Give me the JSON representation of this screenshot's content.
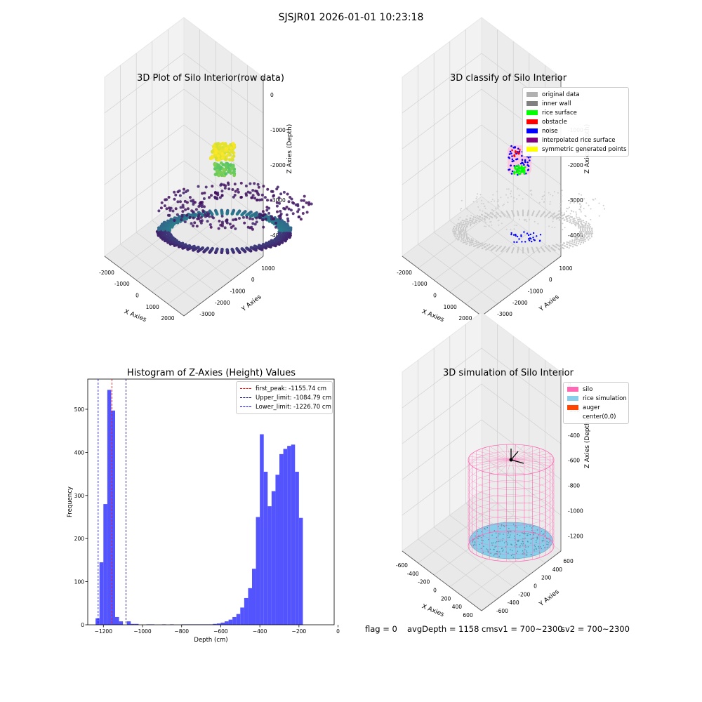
{
  "figure": {
    "suptitle": "SJSJR01 2026-01-01 10:23:18",
    "status": {
      "flag": "flag = 0",
      "avg_depth": "avgDepth = 1158 cmsv1 = 700~2300",
      "sv2": "sv2 = 700~2300"
    }
  },
  "chart_data": [
    {
      "type": "scatter",
      "title": "3D Plot of Silo Interior(row data)",
      "xlabel": "X Axies",
      "ylabel": "Y Axies",
      "zlabel": "Z Axies (Depth)",
      "x_ticks": [
        "-2000",
        "-1000",
        "0",
        "1000",
        "2000"
      ],
      "y_ticks": [
        "1000",
        "0",
        "-1000",
        "-2000",
        "-3000"
      ],
      "z_ticks": [
        "0",
        "-1000",
        "-2000",
        "-3000",
        "-4000"
      ],
      "colormap": "viridis",
      "note_colors": {
        "top_cluster": "#f2e61b",
        "mid_cluster": "#5ec962",
        "floor": "#440d54"
      }
    },
    {
      "type": "scatter",
      "title": "3D classify of Silo Interior",
      "xlabel": "X Axies",
      "ylabel": "Y Axies",
      "zlabel": "Z Axies (Depth)",
      "x_ticks": [
        "-2000",
        "-1000",
        "0",
        "1000",
        "2000"
      ],
      "y_ticks": [
        "1000",
        "0",
        "-1000",
        "-2000",
        "-3000"
      ],
      "z_ticks": [
        "0",
        "-1000",
        "-2000",
        "-3000",
        "-4000"
      ],
      "legend_placement": "top-right",
      "legend": [
        {
          "label": "original data",
          "color": "#b0b0b0"
        },
        {
          "label": "inner wall",
          "color": "#808080"
        },
        {
          "label": "rice surface",
          "color": "#00ff00"
        },
        {
          "label": "obstacle",
          "color": "#ff0000"
        },
        {
          "label": "noise",
          "color": "#0000ff"
        },
        {
          "label": "interpolated rice surface",
          "color": "#800080"
        },
        {
          "label": "symmetric generated points",
          "color": "#ffff00"
        }
      ]
    },
    {
      "type": "bar",
      "title": "Histogram of Z-Axies (Height) Values",
      "xlabel": "Depth (cm)",
      "ylabel": "Frequency",
      "xlim": [
        -1280,
        -20
      ],
      "ylim": [
        0,
        570
      ],
      "x_ticks": [
        -1200,
        -1000,
        -800,
        -600,
        -400,
        -200,
        0
      ],
      "y_ticks": [
        0,
        100,
        200,
        300,
        400,
        500
      ],
      "bar_color": "#4b4bff",
      "bin_width": 20,
      "bins": [
        [
          -1240,
          15
        ],
        [
          -1220,
          145
        ],
        [
          -1200,
          280
        ],
        [
          -1180,
          545
        ],
        [
          -1160,
          497
        ],
        [
          -1140,
          18
        ],
        [
          -1120,
          8
        ],
        [
          -1080,
          8
        ],
        [
          -1060,
          2
        ],
        [
          -1040,
          2
        ],
        [
          -980,
          1
        ],
        [
          -960,
          1
        ],
        [
          -900,
          1
        ],
        [
          -860,
          1
        ],
        [
          -800,
          1
        ],
        [
          -780,
          1
        ],
        [
          -760,
          1
        ],
        [
          -740,
          1
        ],
        [
          -720,
          1
        ],
        [
          -700,
          1
        ],
        [
          -680,
          1
        ],
        [
          -660,
          1
        ],
        [
          -640,
          2
        ],
        [
          -620,
          3
        ],
        [
          -600,
          5
        ],
        [
          -580,
          8
        ],
        [
          -560,
          12
        ],
        [
          -540,
          18
        ],
        [
          -520,
          25
        ],
        [
          -500,
          40
        ],
        [
          -480,
          62
        ],
        [
          -460,
          85
        ],
        [
          -440,
          130
        ],
        [
          -420,
          250
        ],
        [
          -400,
          442
        ],
        [
          -380,
          355
        ],
        [
          -360,
          275
        ],
        [
          -340,
          310
        ],
        [
          -320,
          348
        ],
        [
          -300,
          396
        ],
        [
          -280,
          408
        ],
        [
          -260,
          415
        ],
        [
          -240,
          418
        ],
        [
          -220,
          355
        ],
        [
          -200,
          248
        ]
      ],
      "vlines": [
        {
          "x": -1155.74,
          "color": "#ff0000",
          "label": "first_peak: -1155.74 cm"
        },
        {
          "x": -1084.79,
          "color": "#000080",
          "label": "Upper_limit: -1084.79 cm"
        },
        {
          "x": -1226.7,
          "color": "#0000ff",
          "label": "Lower_limit: -1226.70 cm"
        }
      ],
      "legend_placement": "top-right"
    },
    {
      "type": "scatter",
      "title": "3D simulation of Silo Interior",
      "xlabel": "X Axies",
      "ylabel": "Y Axies",
      "zlabel": "Z Axies (Depth)",
      "x_ticks": [
        "-600",
        "-400",
        "-200",
        "0",
        "200",
        "400",
        "600"
      ],
      "y_ticks": [
        "600",
        "400",
        "200",
        "0",
        "-200",
        "-400",
        "-600"
      ],
      "z_ticks": [
        "0",
        "-200",
        "-400",
        "-600",
        "-800",
        "-1000",
        "-1200"
      ],
      "legend_placement": "top-right",
      "legend": [
        {
          "label": "silo",
          "color": "#ff69b4"
        },
        {
          "label": "rice simulation",
          "color": "#87ceeb"
        },
        {
          "label": "auger",
          "color": "#ff4500"
        },
        {
          "label": "center(0,0)",
          "color": "none"
        }
      ]
    }
  ]
}
